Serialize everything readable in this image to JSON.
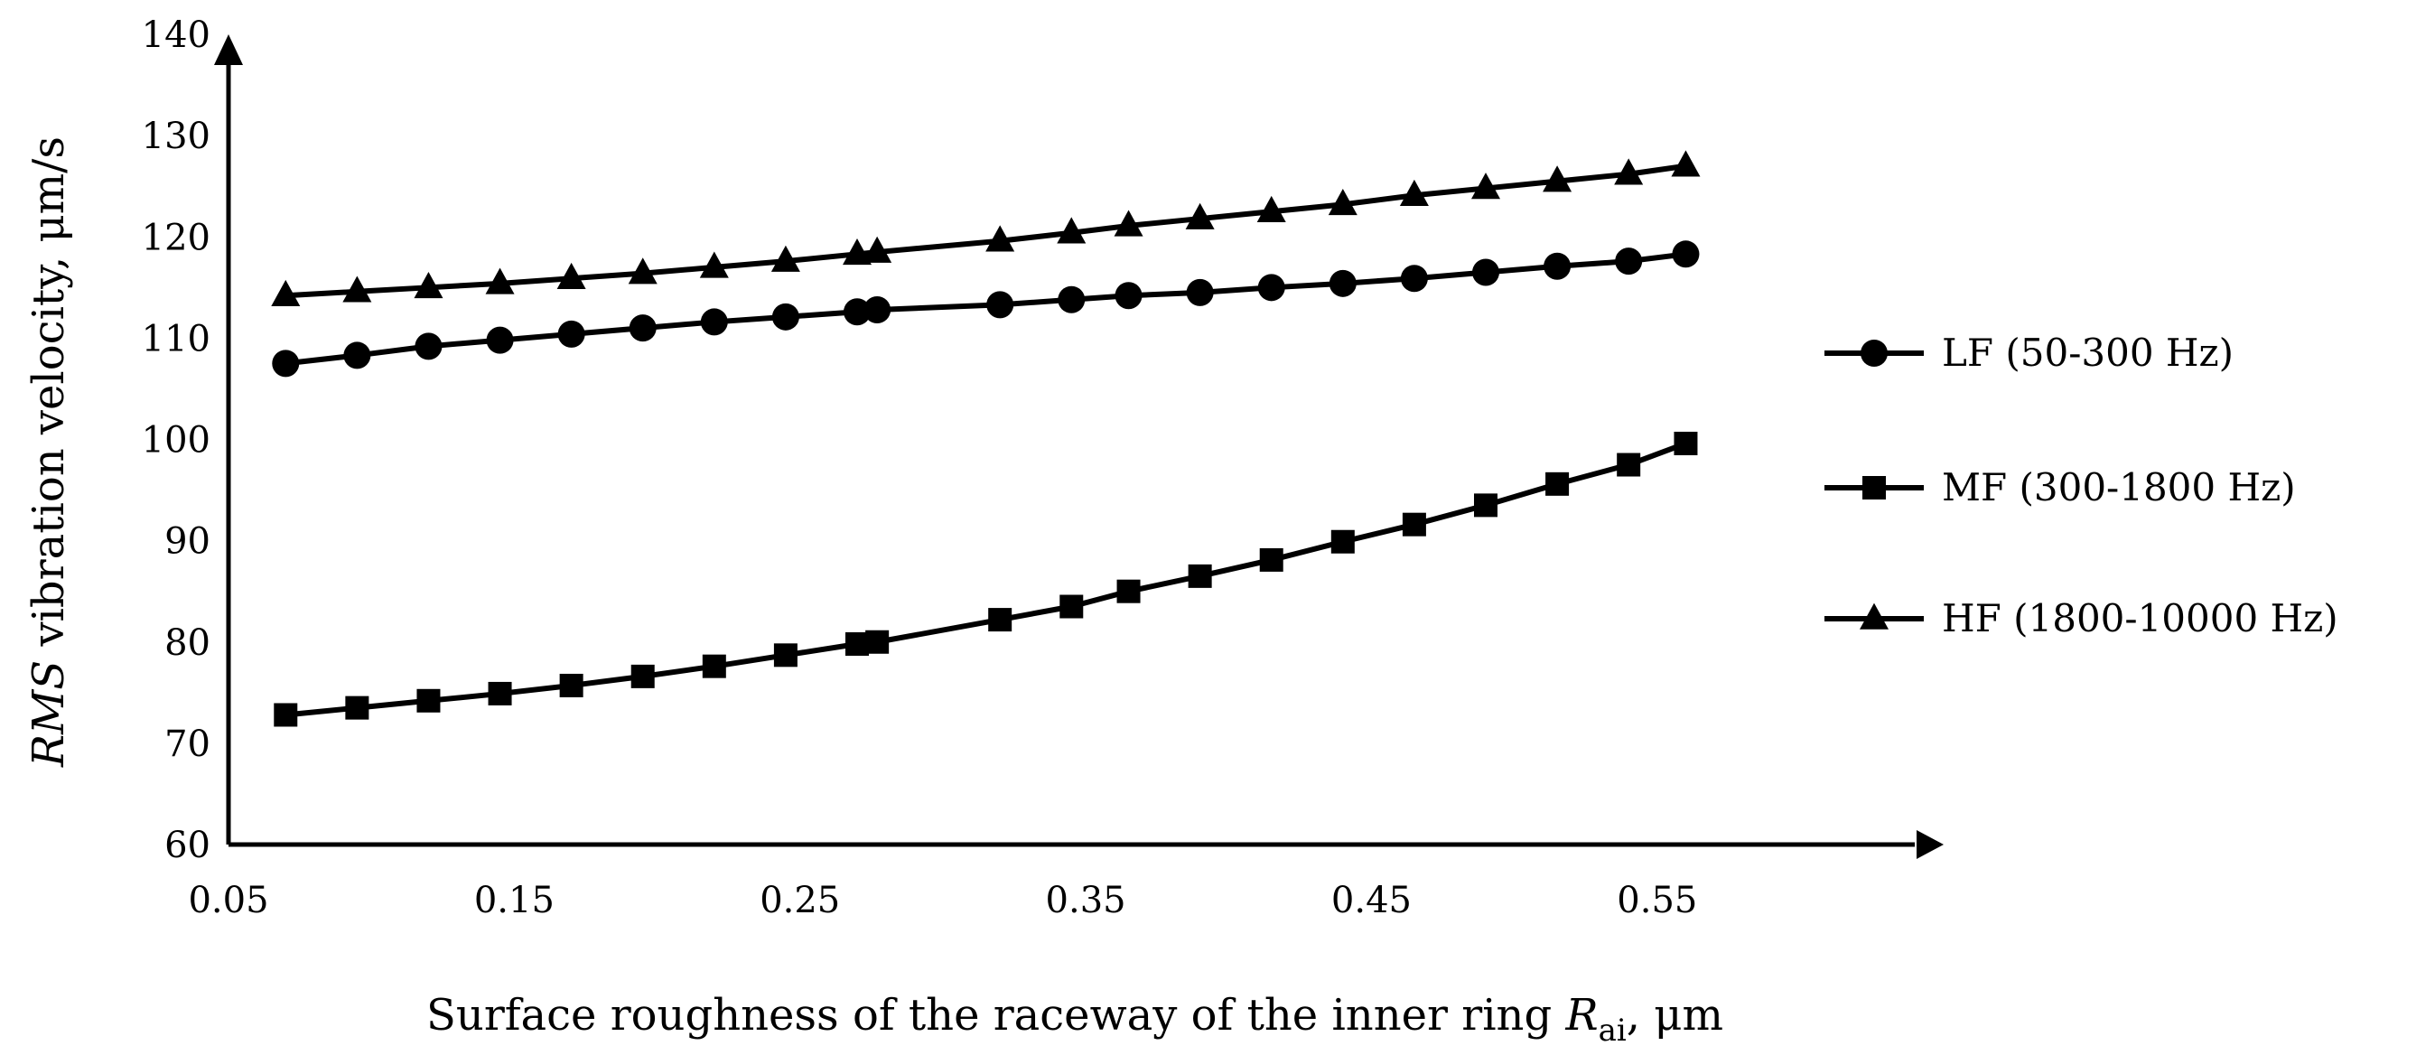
{
  "chart_data": {
    "type": "line",
    "x": [
      0.07,
      0.095,
      0.12,
      0.145,
      0.17,
      0.195,
      0.22,
      0.245,
      0.27,
      0.277,
      0.32,
      0.345,
      0.365,
      0.39,
      0.415,
      0.44,
      0.465,
      0.49,
      0.515,
      0.54,
      0.56
    ],
    "series": [
      {
        "name": "LF (50-300 Hz)",
        "marker": "circle",
        "color": "#000000",
        "values": [
          107.5,
          108.3,
          109.2,
          109.8,
          110.4,
          111.0,
          111.6,
          112.1,
          112.6,
          112.8,
          113.3,
          113.8,
          114.2,
          114.5,
          115.0,
          115.4,
          115.9,
          116.5,
          117.1,
          117.6,
          118.3
        ]
      },
      {
        "name": "MF (300-1800 Hz)",
        "marker": "square",
        "color": "#000000",
        "values": [
          72.8,
          73.5,
          74.2,
          74.9,
          75.7,
          76.6,
          77.6,
          78.7,
          79.8,
          80.0,
          82.2,
          83.5,
          85.0,
          86.5,
          88.1,
          89.9,
          91.6,
          93.5,
          95.6,
          97.5,
          99.6
        ]
      },
      {
        "name": "HF (1800-10000 Hz)",
        "marker": "triangle",
        "color": "#000000",
        "values": [
          114.2,
          114.6,
          115.0,
          115.4,
          115.9,
          116.4,
          117.0,
          117.6,
          118.3,
          118.5,
          119.6,
          120.4,
          121.1,
          121.8,
          122.5,
          123.2,
          124.1,
          124.8,
          125.5,
          126.2,
          127.0
        ]
      }
    ],
    "title": "",
    "xlabel_prefix": "Surface roughness of the raceway of the inner ring ",
    "xlabel_symbol": "R",
    "xlabel_subscript": "ai",
    "xlabel_suffix": ", μm",
    "ylabel_italic": "RMS",
    "ylabel_rest": " vibration velocity, μm/s",
    "xlim": [
      0.05,
      0.6
    ],
    "ylim": [
      60,
      140
    ],
    "xticks": [
      "0.05",
      "0.15",
      "0.25",
      "0.35",
      "0.45",
      "0.55"
    ],
    "xtick_values": [
      0.05,
      0.15,
      0.25,
      0.35,
      0.45,
      0.55
    ],
    "yticks": [
      "60",
      "70",
      "80",
      "90",
      "100",
      "110",
      "120",
      "130",
      "140"
    ],
    "ytick_values": [
      60,
      70,
      80,
      90,
      100,
      110,
      120,
      130,
      140
    ],
    "grid": false,
    "legend": "right"
  }
}
